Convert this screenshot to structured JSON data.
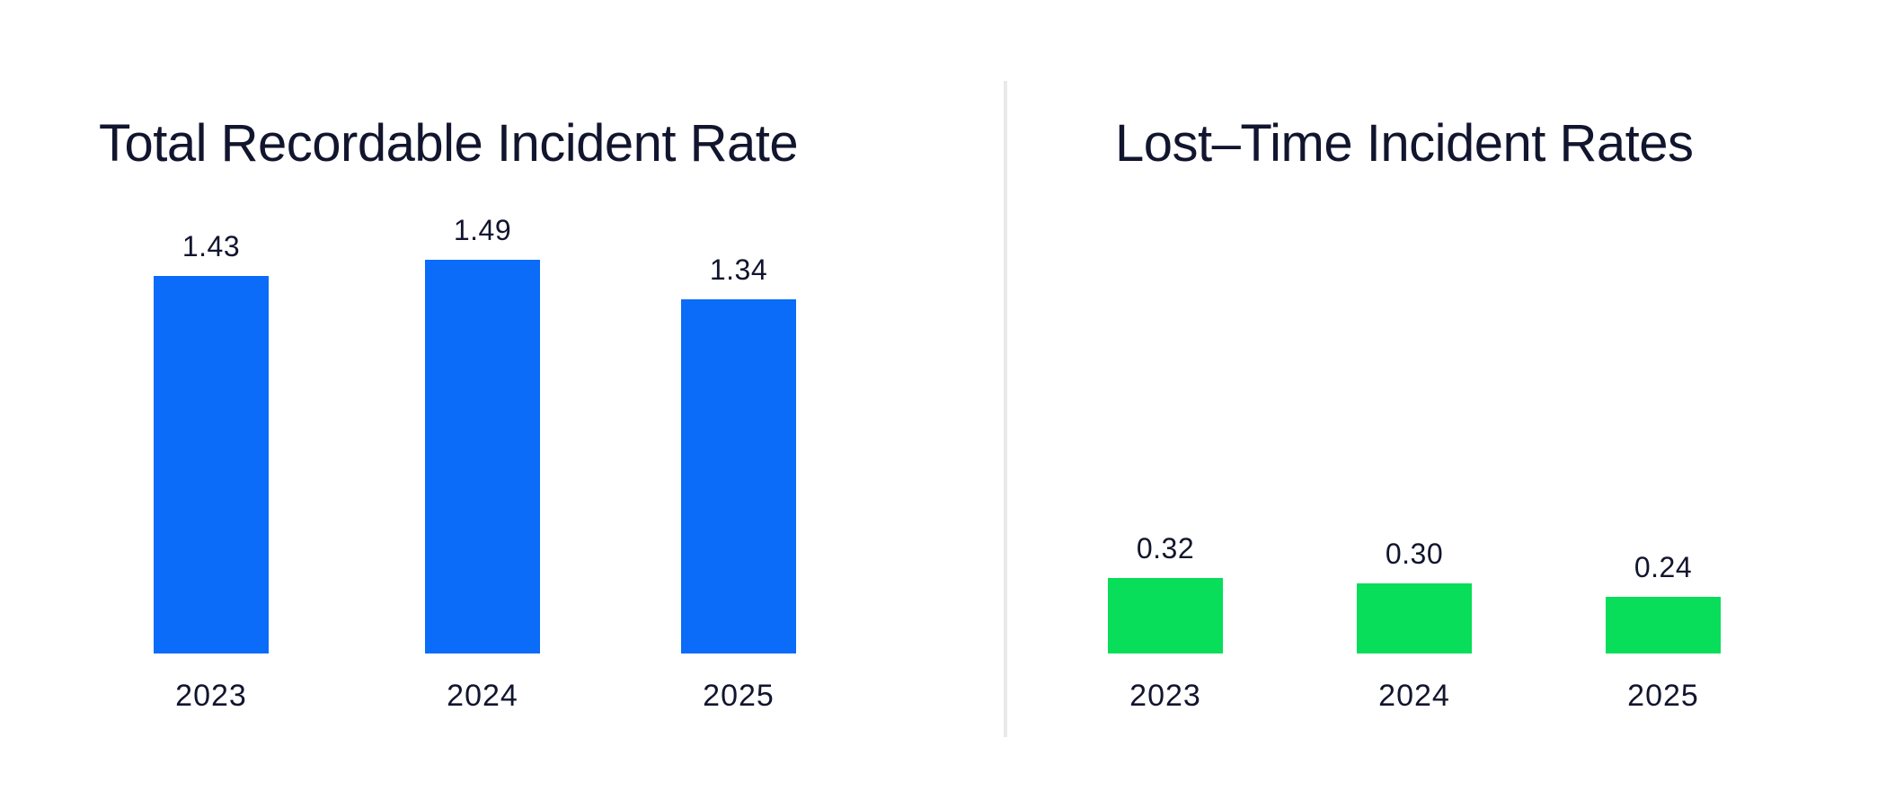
{
  "page": {
    "background": "#FFFFFF",
    "divider_color": "#E9E9E9",
    "text_color": "#12152E"
  },
  "chart_data": [
    {
      "type": "bar",
      "title": "Total Recordable Incident Rate",
      "categories": [
        "2023",
        "2024",
        "2025"
      ],
      "values": [
        1.43,
        1.49,
        1.34
      ],
      "value_labels": [
        "1.43",
        "1.49",
        "1.34"
      ],
      "bar_color": "#0A6CF8",
      "ylim": [
        0,
        1.6
      ],
      "xlabel": "",
      "ylabel": "",
      "grid": false,
      "legend": "none",
      "value_labels_position": "above-bars"
    },
    {
      "type": "bar",
      "title": "Lost–Time Incident Rates",
      "categories": [
        "2023",
        "2024",
        "2025"
      ],
      "values": [
        0.32,
        0.3,
        0.24
      ],
      "value_labels": [
        "0.32",
        "0.30",
        "0.24"
      ],
      "bar_color": "#08DE5A",
      "ylim": [
        0,
        1.8
      ],
      "xlabel": "",
      "ylabel": "",
      "grid": false,
      "legend": "none",
      "value_labels_position": "above-bars"
    }
  ]
}
